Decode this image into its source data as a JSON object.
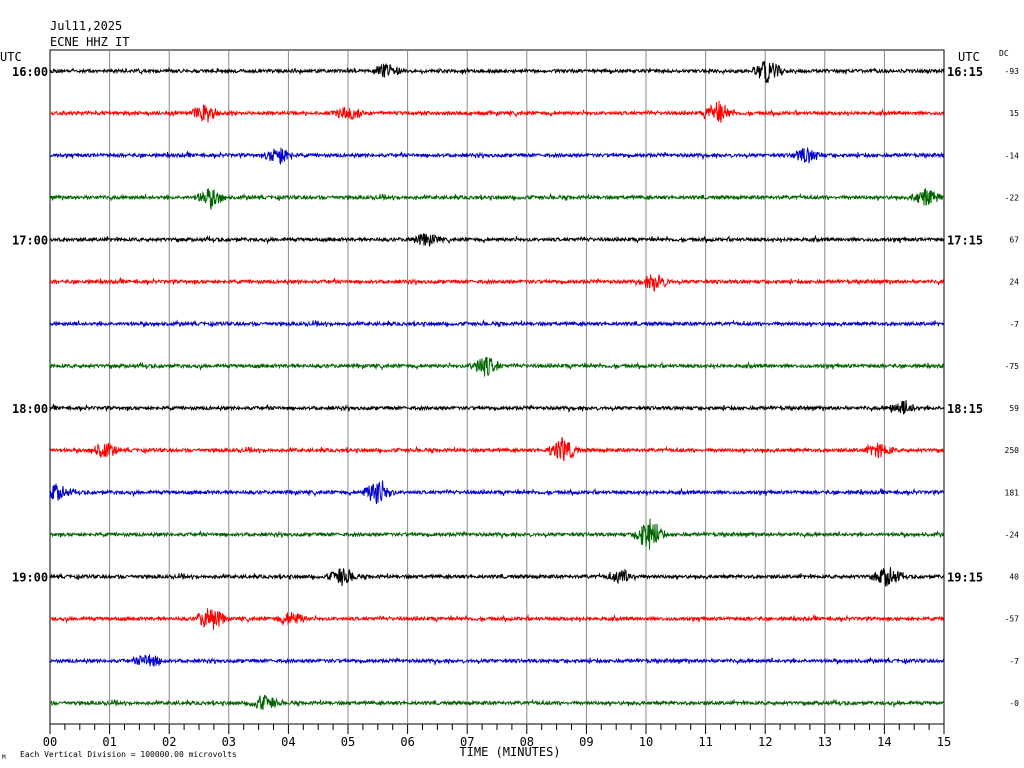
{
  "header": {
    "date": "Jul11,2025",
    "station": "ECNE HHZ IT",
    "utc_left": "UTC",
    "utc_right": "UTC",
    "dc_label": "DC"
  },
  "footer": {
    "note": "Each Vertical Division = 100000.00 microvolts",
    "mark": "M"
  },
  "chart_data": {
    "type": "line",
    "title": "",
    "xlabel": "TIME (MINUTES)",
    "ylabel": "",
    "xlim": [
      0,
      15
    ],
    "x_ticks": [
      "00",
      "01",
      "02",
      "03",
      "04",
      "05",
      "06",
      "07",
      "08",
      "09",
      "10",
      "11",
      "12",
      "13",
      "14",
      "15"
    ],
    "grid": true,
    "trace_colors": [
      "#000000",
      "#ff0000",
      "#0000cc",
      "#006600"
    ],
    "left_time_labels": [
      "16:00",
      "17:00",
      "18:00",
      "19:00"
    ],
    "right_time_labels": [
      "16:15",
      "17:15",
      "18:15",
      "19:15"
    ],
    "dc_offsets": [
      "-93",
      "15",
      "-14",
      "-22",
      "67",
      "24",
      "-7",
      "-75",
      "59",
      "250",
      "181",
      "-24",
      "40",
      "-57",
      "-7",
      "-0"
    ],
    "events": [
      {
        "trace": 0,
        "minute": 12.05,
        "amp": 1.4
      },
      {
        "trace": 0,
        "minute": 5.65,
        "amp": 0.9
      },
      {
        "trace": 1,
        "minute": 11.2,
        "amp": 1.3
      },
      {
        "trace": 1,
        "minute": 2.6,
        "amp": 1.0
      },
      {
        "trace": 1,
        "minute": 5.0,
        "amp": 0.8
      },
      {
        "trace": 2,
        "minute": 3.85,
        "amp": 1.1
      },
      {
        "trace": 2,
        "minute": 12.7,
        "amp": 0.9
      },
      {
        "trace": 3,
        "minute": 2.7,
        "amp": 1.1
      },
      {
        "trace": 3,
        "minute": 14.7,
        "amp": 1.0
      },
      {
        "trace": 4,
        "minute": 6.3,
        "amp": 0.7
      },
      {
        "trace": 5,
        "minute": 10.15,
        "amp": 1.0
      },
      {
        "trace": 7,
        "minute": 7.3,
        "amp": 1.2
      },
      {
        "trace": 8,
        "minute": 14.3,
        "amp": 0.8
      },
      {
        "trace": 9,
        "minute": 8.6,
        "amp": 1.5
      },
      {
        "trace": 9,
        "minute": 0.9,
        "amp": 0.9
      },
      {
        "trace": 9,
        "minute": 13.9,
        "amp": 0.8
      },
      {
        "trace": 10,
        "minute": 5.5,
        "amp": 1.5
      },
      {
        "trace": 10,
        "minute": 0.1,
        "amp": 1.0
      },
      {
        "trace": 11,
        "minute": 10.05,
        "amp": 1.9
      },
      {
        "trace": 12,
        "minute": 4.9,
        "amp": 1.0
      },
      {
        "trace": 12,
        "minute": 14.05,
        "amp": 1.2
      },
      {
        "trace": 12,
        "minute": 9.6,
        "amp": 0.8
      },
      {
        "trace": 13,
        "minute": 2.7,
        "amp": 1.5
      },
      {
        "trace": 13,
        "minute": 4.05,
        "amp": 0.8
      },
      {
        "trace": 14,
        "minute": 1.65,
        "amp": 0.8
      },
      {
        "trace": 15,
        "minute": 3.6,
        "amp": 0.9
      }
    ]
  }
}
